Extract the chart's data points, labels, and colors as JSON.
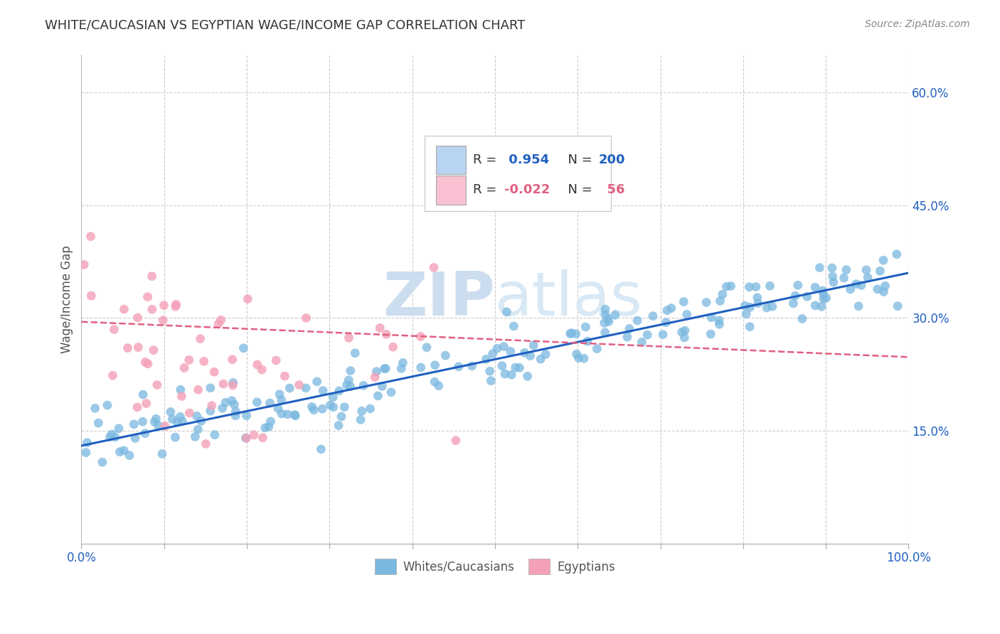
{
  "title": "WHITE/CAUCASIAN VS EGYPTIAN WAGE/INCOME GAP CORRELATION CHART",
  "source": "Source: ZipAtlas.com",
  "ylabel": "Wage/Income Gap",
  "xlim": [
    0,
    1
  ],
  "ylim": [
    0,
    0.65
  ],
  "x_ticks": [
    0.0,
    0.1,
    0.2,
    0.3,
    0.4,
    0.5,
    0.6,
    0.7,
    0.8,
    0.9,
    1.0
  ],
  "y_ticks_right": [
    0.15,
    0.3,
    0.45,
    0.6
  ],
  "y_tick_labels_right": [
    "15.0%",
    "30.0%",
    "45.0%",
    "60.0%"
  ],
  "blue_R": "0.954",
  "blue_N": "200",
  "pink_R": "-0.022",
  "pink_N": "56",
  "blue_color": "#7ab8e0",
  "pink_color": "#f4a0b8",
  "blue_line_color": "#2060c0",
  "pink_line_color": "#e06080",
  "legend_blue_fill": "#b8d4f0",
  "legend_pink_fill": "#f8c0d0",
  "title_color": "#333333",
  "source_color": "#888888",
  "axis_label_color": "#2060c0",
  "right_label_color": "#2060c0",
  "watermark_zip": "ZIP",
  "watermark_atlas": "atlas",
  "watermark_color": "#ccddef",
  "background_color": "#ffffff",
  "grid_color": "#cccccc",
  "blue_line_x": [
    0.0,
    1.0
  ],
  "blue_line_y": [
    0.13,
    0.36
  ],
  "pink_line_x": [
    0.0,
    1.0
  ],
  "pink_line_y": [
    0.295,
    0.248
  ],
  "blue_scatter_seed": 42,
  "pink_scatter_seed": 77
}
